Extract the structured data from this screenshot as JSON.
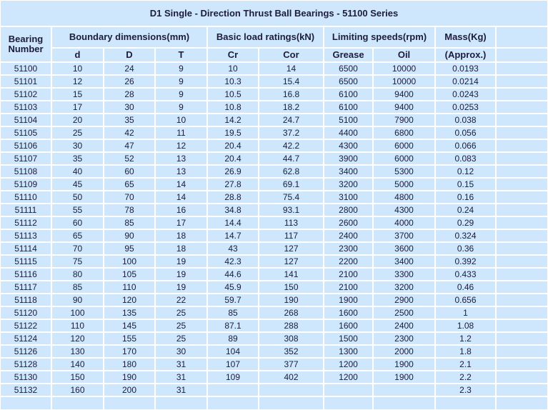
{
  "title": "D1 Single - Direction Thrust Ball Bearings - 51100 Series",
  "header": {
    "bearing_number": "Bearing Number",
    "groups": [
      "Boundary dimensions(mm)",
      "Basic load ratings(kN)",
      "Limiting speeds(rpm)",
      "Mass(Kg)"
    ],
    "subheaders": [
      "d",
      "D",
      "T",
      "Cr",
      "Cor",
      "Grease",
      "Oil",
      "(Approx.)"
    ]
  },
  "table": {
    "rows": [
      [
        "51100",
        "10",
        "24",
        "9",
        "10",
        "14",
        "6500",
        "10000",
        "0.0193"
      ],
      [
        "51101",
        "12",
        "26",
        "9",
        "10.3",
        "15.4",
        "6500",
        "10000",
        "0.0214"
      ],
      [
        "51102",
        "15",
        "28",
        "9",
        "10.5",
        "16.8",
        "6100",
        "9400",
        "0.0243"
      ],
      [
        "51103",
        "17",
        "30",
        "9",
        "10.8",
        "18.2",
        "6100",
        "9400",
        "0.0253"
      ],
      [
        "51104",
        "20",
        "35",
        "10",
        "14.2",
        "24.7",
        "5100",
        "7900",
        "0.038"
      ],
      [
        "51105",
        "25",
        "42",
        "11",
        "19.5",
        "37.2",
        "4400",
        "6800",
        "0.056"
      ],
      [
        "51106",
        "30",
        "47",
        "12",
        "20.4",
        "42.2",
        "4300",
        "6000",
        "0.066"
      ],
      [
        "51107",
        "35",
        "52",
        "13",
        "20.4",
        "44.7",
        "3900",
        "6000",
        "0.083"
      ],
      [
        "51108",
        "40",
        "60",
        "13",
        "26.9",
        "62.8",
        "3400",
        "5300",
        "0.12"
      ],
      [
        "51109",
        "45",
        "65",
        "14",
        "27.8",
        "69.1",
        "3200",
        "5000",
        "0.15"
      ],
      [
        "51110",
        "50",
        "70",
        "14",
        "28.8",
        "75.4",
        "3100",
        "4800",
        "0.16"
      ],
      [
        "51111",
        "55",
        "78",
        "16",
        "34.8",
        "93.1",
        "2800",
        "4300",
        "0.24"
      ],
      [
        "51112",
        "60",
        "85",
        "17",
        "14.4",
        "113",
        "2600",
        "4000",
        "0.29"
      ],
      [
        "51113",
        "65",
        "90",
        "18",
        "14.7",
        "117",
        "2400",
        "3700",
        "0.324"
      ],
      [
        "51114",
        "70",
        "95",
        "18",
        "43",
        "127",
        "2300",
        "3600",
        "0.36"
      ],
      [
        "51115",
        "75",
        "100",
        "19",
        "42.3",
        "127",
        "2200",
        "3400",
        "0.392"
      ],
      [
        "51116",
        "80",
        "105",
        "19",
        "44.6",
        "141",
        "2100",
        "3300",
        "0.433"
      ],
      [
        "51117",
        "85",
        "110",
        "19",
        "45.9",
        "150",
        "2100",
        "3200",
        "0.46"
      ],
      [
        "51118",
        "90",
        "120",
        "22",
        "59.7",
        "190",
        "1900",
        "2900",
        "0.656"
      ],
      [
        "51120",
        "100",
        "135",
        "25",
        "85",
        "268",
        "1600",
        "2500",
        "1"
      ],
      [
        "51122",
        "110",
        "145",
        "25",
        "87.1",
        "288",
        "1600",
        "2400",
        "1.08"
      ],
      [
        "51124",
        "120",
        "155",
        "25",
        "89",
        "308",
        "1500",
        "2300",
        "1.2"
      ],
      [
        "51126",
        "130",
        "170",
        "30",
        "104",
        "352",
        "1300",
        "2000",
        "1.8"
      ],
      [
        "51128",
        "140",
        "180",
        "31",
        "107",
        "377",
        "1200",
        "1900",
        "2.1"
      ],
      [
        "51130",
        "150",
        "190",
        "31",
        "109",
        "402",
        "1200",
        "1900",
        "2.2"
      ],
      [
        "51132",
        "160",
        "200",
        "31",
        null,
        null,
        null,
        null,
        "2.3"
      ]
    ]
  }
}
